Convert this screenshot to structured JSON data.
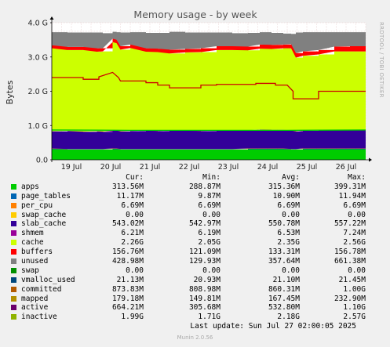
{
  "chart_data": {
    "type": "area",
    "title": "Memory usage - by week",
    "ylabel": "Bytes",
    "side_label": "RRDTOOL / TOBI OETIKER",
    "ylim": [
      0,
      4.0
    ],
    "y_unit": "G",
    "y_ticks": [
      {
        "value": 0.0,
        "label": "0.0"
      },
      {
        "value": 1.0,
        "label": "1.0 G"
      },
      {
        "value": 2.0,
        "label": "2.0 G"
      },
      {
        "value": 3.0,
        "label": "3.0 G"
      },
      {
        "value": 4.0,
        "label": "4.0 G"
      }
    ],
    "xlim": [
      0,
      8
    ],
    "x_ticks": [
      {
        "value": 0.5,
        "label": "19 Jul"
      },
      {
        "value": 1.5,
        "label": "20 Jul"
      },
      {
        "value": 2.5,
        "label": "21 Jul"
      },
      {
        "value": 3.5,
        "label": "22 Jul"
      },
      {
        "value": 4.5,
        "label": "23 Jul"
      },
      {
        "value": 5.5,
        "label": "24 Jul"
      },
      {
        "value": 6.5,
        "label": "25 Jul"
      },
      {
        "value": 7.5,
        "label": "26 Jul"
      }
    ],
    "x_grid_minor_step": 0.25,
    "grid": true,
    "x": [
      0.0,
      0.4,
      0.8,
      1.15,
      1.3,
      1.55,
      1.65,
      1.75,
      2.0,
      2.4,
      2.7,
      3.0,
      3.4,
      3.8,
      4.2,
      4.6,
      5.0,
      5.3,
      5.6,
      5.9,
      6.1,
      6.22,
      6.4,
      6.8,
      7.2,
      7.6,
      8.0
    ],
    "series": [
      {
        "name": "apps",
        "color": "#00cc00",
        "values": [
          0.31,
          0.3,
          0.3,
          0.3,
          0.3,
          0.31,
          0.31,
          0.3,
          0.3,
          0.3,
          0.3,
          0.3,
          0.3,
          0.3,
          0.3,
          0.3,
          0.31,
          0.31,
          0.31,
          0.31,
          0.3,
          0.3,
          0.31,
          0.31,
          0.31,
          0.31,
          0.31
        ]
      },
      {
        "name": "page_tables",
        "color": "#0066b3",
        "values": [
          0.011,
          0.011,
          0.011,
          0.011,
          0.011,
          0.011,
          0.011,
          0.011,
          0.011,
          0.011,
          0.011,
          0.011,
          0.011,
          0.011,
          0.011,
          0.011,
          0.011,
          0.011,
          0.011,
          0.011,
          0.011,
          0.011,
          0.011,
          0.011,
          0.011,
          0.011,
          0.011
        ]
      },
      {
        "name": "per_cpu",
        "color": "#ff8000",
        "values": [
          0.0065,
          0.0065,
          0.0065,
          0.0065,
          0.0065,
          0.0065,
          0.0065,
          0.0065,
          0.0065,
          0.0065,
          0.0065,
          0.0065,
          0.0065,
          0.0065,
          0.0065,
          0.0065,
          0.0065,
          0.0065,
          0.0065,
          0.0065,
          0.0065,
          0.0065,
          0.0065,
          0.0065,
          0.0065,
          0.0065,
          0.0065
        ]
      },
      {
        "name": "swap_cache",
        "color": "#ffcc00",
        "values": [
          0,
          0,
          0,
          0,
          0,
          0,
          0,
          0,
          0,
          0,
          0,
          0,
          0,
          0,
          0,
          0,
          0,
          0,
          0,
          0,
          0,
          0,
          0,
          0,
          0,
          0,
          0
        ]
      },
      {
        "name": "slab_cache",
        "color": "#330099",
        "values": [
          0.5,
          0.52,
          0.5,
          0.51,
          0.5,
          0.52,
          0.52,
          0.51,
          0.52,
          0.53,
          0.52,
          0.53,
          0.53,
          0.52,
          0.53,
          0.53,
          0.53,
          0.55,
          0.54,
          0.54,
          0.53,
          0.51,
          0.52,
          0.53,
          0.53,
          0.53,
          0.53
        ]
      },
      {
        "name": "shmem",
        "color": "#990099",
        "values": [
          0.006,
          0.006,
          0.006,
          0.006,
          0.006,
          0.006,
          0.006,
          0.006,
          0.006,
          0.006,
          0.006,
          0.006,
          0.006,
          0.006,
          0.006,
          0.006,
          0.006,
          0.006,
          0.006,
          0.006,
          0.006,
          0.006,
          0.006,
          0.006,
          0.006,
          0.006,
          0.006
        ]
      },
      {
        "name": "cache",
        "color": "#ccff00",
        "values": [
          2.42,
          2.36,
          2.38,
          2.32,
          2.34,
          2.58,
          2.55,
          2.38,
          2.42,
          2.3,
          2.3,
          2.25,
          2.28,
          2.3,
          2.35,
          2.35,
          2.33,
          2.36,
          2.36,
          2.38,
          2.4,
          2.15,
          2.18,
          2.21,
          2.3,
          2.3,
          2.3
        ]
      },
      {
        "name": "buffers",
        "color": "#ff0000",
        "values": [
          0.09,
          0.09,
          0.09,
          0.1,
          0.09,
          0.1,
          0.1,
          0.1,
          0.1,
          0.1,
          0.1,
          0.11,
          0.1,
          0.11,
          0.11,
          0.11,
          0.11,
          0.12,
          0.12,
          0.11,
          0.12,
          0.13,
          0.13,
          0.13,
          0.14,
          0.15,
          0.15
        ]
      },
      {
        "name": "unused",
        "color": "#808080",
        "values": [
          0.38,
          0.42,
          0.42,
          0.46,
          0.44,
          0.2,
          0.22,
          0.4,
          0.36,
          0.45,
          0.46,
          0.52,
          0.48,
          0.46,
          0.4,
          0.38,
          0.4,
          0.36,
          0.35,
          0.32,
          0.3,
          0.6,
          0.56,
          0.52,
          0.42,
          0.41,
          0.41
        ]
      }
    ],
    "lines": [
      {
        "name": "committed",
        "color": "#00cc00",
        "x": [
          0.0,
          2.0,
          6.0,
          8.0
        ],
        "values": [
          0.87,
          0.86,
          0.86,
          0.87
        ]
      },
      {
        "name": "inactive",
        "color": "#cc0000",
        "x": [
          0.0,
          0.8,
          0.8,
          1.2,
          1.2,
          1.55,
          1.7,
          1.75,
          2.4,
          2.4,
          2.7,
          2.7,
          3.0,
          3.0,
          3.8,
          3.8,
          4.2,
          4.2,
          5.2,
          5.2,
          5.7,
          5.7,
          6.0,
          6.15,
          6.15,
          6.8,
          6.8,
          8.0
        ],
        "values": [
          2.4,
          2.4,
          2.35,
          2.35,
          2.42,
          2.55,
          2.4,
          2.3,
          2.3,
          2.25,
          2.25,
          2.18,
          2.18,
          2.1,
          2.1,
          2.18,
          2.18,
          2.2,
          2.2,
          2.23,
          2.23,
          2.18,
          2.18,
          2.0,
          1.78,
          1.78,
          2.0,
          2.0
        ]
      }
    ],
    "legend_header": {
      "cur": "Cur:",
      "min": "Min:",
      "avg": "Avg:",
      "max": "Max:"
    },
    "legend": [
      {
        "name": "apps",
        "color": "#00cc00",
        "cur": "313.56M",
        "min": "288.87M",
        "avg": "315.36M",
        "max": "399.31M"
      },
      {
        "name": "page_tables",
        "color": "#0066b3",
        "cur": "11.17M",
        "min": "9.87M",
        "avg": "10.90M",
        "max": "11.94M"
      },
      {
        "name": "per_cpu",
        "color": "#ff8000",
        "cur": "6.69M",
        "min": "6.69M",
        "avg": "6.69M",
        "max": "6.69M"
      },
      {
        "name": "swap_cache",
        "color": "#ffcc00",
        "cur": "0.00",
        "min": "0.00",
        "avg": "0.00",
        "max": "0.00"
      },
      {
        "name": "slab_cache",
        "color": "#330099",
        "cur": "543.02M",
        "min": "542.97M",
        "avg": "550.78M",
        "max": "557.22M"
      },
      {
        "name": "shmem",
        "color": "#990099",
        "cur": "6.21M",
        "min": "6.19M",
        "avg": "6.53M",
        "max": "7.24M"
      },
      {
        "name": "cache",
        "color": "#ccff00",
        "cur": "2.26G",
        "min": "2.05G",
        "avg": "2.35G",
        "max": "2.56G"
      },
      {
        "name": "buffers",
        "color": "#ff0000",
        "cur": "156.76M",
        "min": "121.09M",
        "avg": "133.31M",
        "max": "156.78M"
      },
      {
        "name": "unused",
        "color": "#808080",
        "cur": "428.98M",
        "min": "129.93M",
        "avg": "357.64M",
        "max": "661.38M"
      },
      {
        "name": "swap",
        "color": "#008f00",
        "cur": "0.00",
        "min": "0.00",
        "avg": "0.00",
        "max": "0.00"
      },
      {
        "name": "vmalloc_used",
        "color": "#00487d",
        "cur": "21.13M",
        "min": "20.93M",
        "avg": "21.10M",
        "max": "21.45M"
      },
      {
        "name": "committed",
        "color": "#b35a00",
        "cur": "873.83M",
        "min": "808.98M",
        "avg": "860.31M",
        "max": "1.00G"
      },
      {
        "name": "mapped",
        "color": "#b38f00",
        "cur": "179.18M",
        "min": "149.81M",
        "avg": "167.45M",
        "max": "232.90M"
      },
      {
        "name": "active",
        "color": "#6b006b",
        "cur": "664.21M",
        "min": "305.68M",
        "avg": "532.80M",
        "max": "1.10G"
      },
      {
        "name": "inactive",
        "color": "#8fb300",
        "cur": "1.99G",
        "min": "1.71G",
        "avg": "2.18G",
        "max": "2.57G"
      }
    ],
    "last_update": "Last update:  Sun Jul 27 02:00:05 2025",
    "footer": "Munin 2.0.56"
  }
}
